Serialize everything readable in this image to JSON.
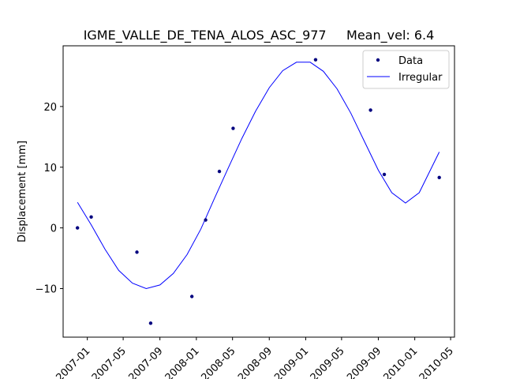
{
  "chart_data": {
    "type": "line",
    "title": "IGME_VALLE_DE_TENA_ALOS_ASC_977     Mean_vel: 6.4",
    "xlabel": "",
    "ylabel": "Displacement [mm]",
    "x_axis_type": "date",
    "xlim": [
      "2006-10-12",
      "2010-05-14"
    ],
    "ylim": [
      -18,
      30
    ],
    "x_ticks": [
      "2007-01",
      "2007-05",
      "2007-09",
      "2008-01",
      "2008-05",
      "2008-09",
      "2009-01",
      "2009-05",
      "2009-09",
      "2010-01",
      "2010-05"
    ],
    "y_ticks": [
      -10,
      0,
      10,
      20
    ],
    "grid": false,
    "legend": {
      "placement": "top-right",
      "entries": [
        "Data",
        "Irregular"
      ]
    },
    "colors": {
      "data": "#00007f",
      "irregular": "#0000ff"
    },
    "series": [
      {
        "name": "Data",
        "style": "markers",
        "points": [
          {
            "x": "2006-11-29",
            "y": 0.0
          },
          {
            "x": "2007-01-14",
            "y": 1.8
          },
          {
            "x": "2007-06-16",
            "y": -4.0
          },
          {
            "x": "2007-08-01",
            "y": -15.7
          },
          {
            "x": "2007-12-17",
            "y": -11.3
          },
          {
            "x": "2008-02-01",
            "y": 1.3
          },
          {
            "x": "2008-03-18",
            "y": 9.3
          },
          {
            "x": "2008-05-03",
            "y": 16.4
          },
          {
            "x": "2009-02-03",
            "y": 27.7
          },
          {
            "x": "2009-08-06",
            "y": 19.4
          },
          {
            "x": "2009-09-21",
            "y": 8.8
          },
          {
            "x": "2010-03-24",
            "y": 8.3
          }
        ]
      },
      {
        "name": "Irregular",
        "style": "line",
        "points": [
          {
            "x": "2006-11-29",
            "y": 4.2
          },
          {
            "x": "2007-01-14",
            "y": 0.5
          },
          {
            "x": "2007-03-01",
            "y": -3.5
          },
          {
            "x": "2007-04-16",
            "y": -7.0
          },
          {
            "x": "2007-06-01",
            "y": -9.1
          },
          {
            "x": "2007-07-17",
            "y": -10.0
          },
          {
            "x": "2007-09-01",
            "y": -9.4
          },
          {
            "x": "2007-10-16",
            "y": -7.5
          },
          {
            "x": "2007-12-01",
            "y": -4.4
          },
          {
            "x": "2008-01-16",
            "y": -0.2
          },
          {
            "x": "2008-03-01",
            "y": 4.8
          },
          {
            "x": "2008-04-16",
            "y": 9.8
          },
          {
            "x": "2008-06-01",
            "y": 14.7
          },
          {
            "x": "2008-07-17",
            "y": 19.2
          },
          {
            "x": "2008-09-01",
            "y": 23.1
          },
          {
            "x": "2008-10-16",
            "y": 25.9
          },
          {
            "x": "2008-12-01",
            "y": 27.3
          },
          {
            "x": "2009-01-16",
            "y": 27.3
          },
          {
            "x": "2009-03-01",
            "y": 25.8
          },
          {
            "x": "2009-04-16",
            "y": 22.9
          },
          {
            "x": "2009-06-01",
            "y": 18.9
          },
          {
            "x": "2009-07-17",
            "y": 14.2
          },
          {
            "x": "2009-09-01",
            "y": 9.5
          },
          {
            "x": "2009-10-16",
            "y": 5.8
          },
          {
            "x": "2009-12-01",
            "y": 4.1
          },
          {
            "x": "2010-01-16",
            "y": 5.8
          },
          {
            "x": "2010-03-24",
            "y": 12.5
          }
        ]
      }
    ]
  }
}
